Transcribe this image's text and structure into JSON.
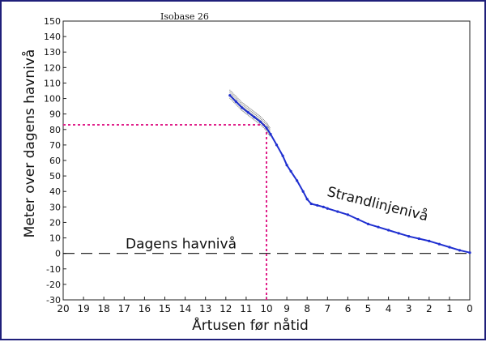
{
  "chart_data": {
    "type": "line",
    "title": "Isobase 26",
    "xlabel": "Årtusen før nåtid",
    "ylabel": "Meter over dagens havnivå",
    "xlim": [
      20,
      0
    ],
    "ylim": [
      -30,
      150
    ],
    "x_ticks": [
      "20",
      "19",
      "18",
      "17",
      "16",
      "15",
      "14",
      "13",
      "12",
      "11",
      "10",
      "9",
      "8",
      "7",
      "6",
      "5",
      "4",
      "3",
      "2",
      "1",
      "0"
    ],
    "y_ticks": [
      "-30",
      "-20",
      "-10",
      "0",
      "10",
      "20",
      "30",
      "40",
      "50",
      "60",
      "70",
      "80",
      "90",
      "100",
      "110",
      "120",
      "130",
      "140",
      "150"
    ],
    "grid": false,
    "series": [
      {
        "name": "Strandlinjenivå",
        "color": "#1f2fd0",
        "x": [
          11.8,
          11.5,
          11.2,
          10.9,
          10.6,
          10.3,
          10.0,
          9.8,
          9.5,
          9.2,
          9.0,
          8.8,
          8.5,
          8.2,
          8.0,
          7.8,
          7.5,
          7.2,
          7.0,
          6.5,
          6.0,
          5.5,
          5.0,
          4.5,
          4.0,
          3.5,
          3.0,
          2.5,
          2.0,
          1.5,
          1.0,
          0.5,
          0.0
        ],
        "y": [
          102,
          98,
          94,
          91,
          88,
          85,
          81,
          77,
          70,
          63,
          57,
          53,
          47,
          40,
          35,
          32,
          31,
          30,
          29,
          27,
          25,
          22,
          19,
          17,
          15,
          13,
          11,
          9.5,
          8,
          6,
          4,
          2,
          0.5
        ]
      }
    ],
    "uncertainty": {
      "color": "#777777",
      "x_from": 11.8,
      "x_to": 10.0
    },
    "reference_lines": [
      {
        "label": "Dagens havnivå",
        "y": 0,
        "style": "dashed",
        "color": "#111111"
      },
      {
        "label": "",
        "y": 83,
        "x_from": 20,
        "x_to": 10,
        "style": "dotted",
        "color": "#e0208a"
      },
      {
        "label": "",
        "x": 10,
        "y_from": -30,
        "y_to": 83,
        "style": "dotted",
        "color": "#e0208a"
      }
    ],
    "annotations": [
      {
        "text": "Strandlinjenivå"
      }
    ]
  }
}
